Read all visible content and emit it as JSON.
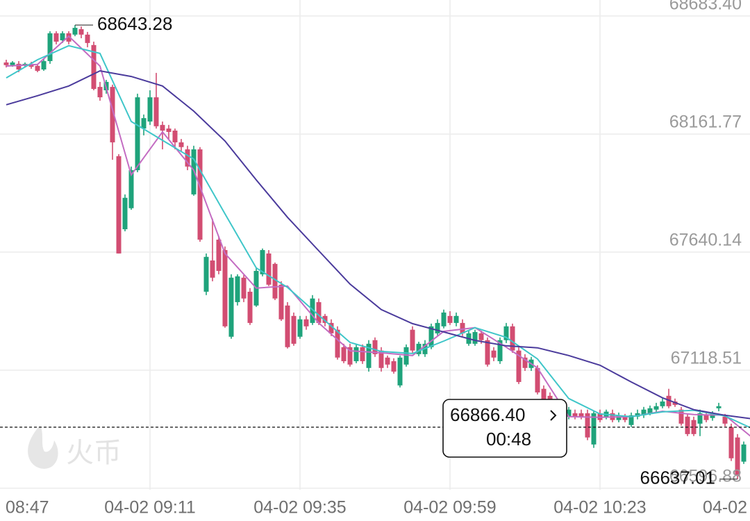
{
  "chart_data": {
    "type": "candlestick",
    "xlim": [
      527,
      647
    ],
    "xticks": [
      {
        "value": 527,
        "label": "08:47"
      },
      {
        "value": 551,
        "label": "04-02 09:11"
      },
      {
        "value": 575,
        "label": "04-02 09:35"
      },
      {
        "value": 599,
        "label": "04-02 09:59"
      },
      {
        "value": 623,
        "label": "04-02 10:23"
      },
      {
        "value": 647,
        "label": "04-02"
      }
    ],
    "ylim": [
      66590,
      68754
    ],
    "yticks": [
      {
        "value": 68683.4,
        "label": "68683.40"
      },
      68161.77,
      67640.14,
      67118.51,
      66596.88
    ],
    "grid": true,
    "up_color": "#1fa37b",
    "down_color": "#d24d72",
    "ohlc": [
      [
        528,
        68478,
        68490,
        68456,
        68466
      ],
      [
        529,
        68466,
        68484,
        68459,
        68478
      ],
      [
        530,
        68472,
        68484,
        68435,
        68447
      ],
      [
        531,
        68463,
        68478,
        68456,
        68472
      ],
      [
        532,
        68472,
        68481,
        68450,
        68459
      ],
      [
        533,
        68463,
        68472,
        68435,
        68441
      ],
      [
        534,
        68447,
        68493,
        68441,
        68484
      ],
      [
        535,
        68484,
        68616,
        68472,
        68607
      ],
      [
        536,
        68607,
        68616,
        68558,
        68570
      ],
      [
        537,
        68576,
        68616,
        68564,
        68607
      ],
      [
        538,
        68607,
        68616,
        68558,
        68570
      ],
      [
        539,
        68601,
        68643.28,
        68594,
        68631
      ],
      [
        540,
        68625,
        68637,
        68585,
        68601
      ],
      [
        541,
        68601,
        68613,
        68545,
        68564
      ],
      [
        542,
        68555,
        68570,
        68355,
        68361
      ],
      [
        543,
        68370,
        68392,
        68309,
        68324
      ],
      [
        544,
        68355,
        68401,
        68340,
        68392
      ],
      [
        545,
        68370,
        68380,
        68048,
        68125
      ],
      [
        546,
        68064,
        68073,
        67634,
        67634
      ],
      [
        547,
        67741,
        67895,
        67732,
        67880
      ],
      [
        548,
        67834,
        68018,
        67827,
        68002
      ],
      [
        549,
        68002,
        68340,
        67993,
        68324
      ],
      [
        550,
        68186,
        68248,
        68156,
        68232
      ],
      [
        551,
        68217,
        68355,
        68202,
        68324
      ],
      [
        552,
        68324,
        68432,
        68186,
        68196
      ],
      [
        553,
        68202,
        68217,
        68094,
        68177
      ],
      [
        554,
        68186,
        68202,
        68140,
        68171
      ],
      [
        555,
        68177,
        68186,
        68094,
        68125
      ],
      [
        556,
        68125,
        68140,
        68085,
        68104
      ],
      [
        557,
        68094,
        68110,
        68002,
        68018
      ],
      [
        558,
        67895,
        68110,
        67889,
        68094
      ],
      [
        559,
        68094,
        68104,
        67686,
        67695
      ],
      [
        560,
        67465,
        67634,
        67450,
        67619
      ],
      [
        561,
        67603,
        67788,
        67511,
        67527
      ],
      [
        562,
        67695,
        67711,
        67542,
        67557
      ],
      [
        563,
        67649,
        67665,
        67306,
        67312
      ],
      [
        564,
        67266,
        67542,
        67257,
        67527
      ],
      [
        565,
        67419,
        67542,
        67404,
        67533
      ],
      [
        566,
        67527,
        67539,
        67419,
        67435
      ],
      [
        567,
        67465,
        67481,
        67318,
        67327
      ],
      [
        568,
        67404,
        67573,
        67398,
        67557
      ],
      [
        569,
        67542,
        67656,
        67533,
        67649
      ],
      [
        570,
        67634,
        67649,
        67490,
        67496
      ],
      [
        571,
        67588,
        67594,
        67428,
        67435
      ],
      [
        572,
        67496,
        67511,
        67336,
        67343
      ],
      [
        573,
        67404,
        67419,
        67214,
        67220
      ],
      [
        574,
        67358,
        67373,
        67226,
        67235
      ],
      [
        575,
        67266,
        67358,
        67257,
        67343
      ],
      [
        576,
        67343,
        67358,
        67297,
        67312
      ],
      [
        577,
        67327,
        67450,
        67318,
        67435
      ],
      [
        578,
        67419,
        67435,
        67318,
        67327
      ],
      [
        579,
        67358,
        67367,
        67312,
        67327
      ],
      [
        580,
        67327,
        67343,
        67269,
        67281
      ],
      [
        581,
        67297,
        67312,
        67165,
        67174
      ],
      [
        582,
        67220,
        67235,
        67149,
        67158
      ],
      [
        583,
        67220,
        67235,
        67134,
        67143
      ],
      [
        584,
        67158,
        67235,
        67149,
        67220
      ],
      [
        585,
        67220,
        67232,
        67146,
        67158
      ],
      [
        586,
        67128,
        67251,
        67112,
        67235
      ],
      [
        587,
        67251,
        67263,
        67177,
        67189
      ],
      [
        588,
        67205,
        67220,
        67112,
        67128
      ],
      [
        589,
        67174,
        67183,
        67128,
        67143
      ],
      [
        590,
        67158,
        67171,
        67103,
        67112
      ],
      [
        591,
        67051,
        67183,
        67042,
        67174
      ],
      [
        592,
        67143,
        67232,
        67134,
        67220
      ],
      [
        593,
        67297,
        67312,
        67195,
        67205
      ],
      [
        594,
        67189,
        67244,
        67180,
        67235
      ],
      [
        595,
        67189,
        67251,
        67177,
        67235
      ],
      [
        596,
        67220,
        67324,
        67211,
        67312
      ],
      [
        597,
        67281,
        67343,
        67272,
        67327
      ],
      [
        598,
        67312,
        67386,
        67303,
        67373
      ],
      [
        599,
        67358,
        67379,
        67318,
        67327
      ],
      [
        600,
        67327,
        67373,
        67312,
        67358
      ],
      [
        601,
        67327,
        67343,
        67269,
        67281
      ],
      [
        602,
        67235,
        67293,
        67226,
        67281
      ],
      [
        603,
        67235,
        67297,
        67226,
        67287
      ],
      [
        604,
        67281,
        67293,
        67235,
        67251
      ],
      [
        605,
        67251,
        67263,
        67134,
        67143
      ],
      [
        606,
        67205,
        67220,
        67158,
        67174
      ],
      [
        607,
        67158,
        67263,
        67146,
        67251
      ],
      [
        608,
        67251,
        67327,
        67238,
        67312
      ],
      [
        609,
        67312,
        67324,
        67195,
        67205
      ],
      [
        610,
        67205,
        67220,
        67057,
        67066
      ],
      [
        611,
        67174,
        67189,
        67115,
        67128
      ],
      [
        612,
        67128,
        67177,
        67115,
        67165
      ],
      [
        613,
        67128,
        67140,
        67011,
        67020
      ],
      [
        614,
        67036,
        67051,
        66901,
        66913
      ],
      [
        615,
        67005,
        67020,
        66839,
        66852
      ],
      [
        616,
        66974,
        66990,
        66778,
        66790
      ],
      [
        617,
        66913,
        66925,
        66827,
        66836
      ],
      [
        618,
        66913,
        66956,
        66901,
        66944
      ],
      [
        619,
        66928,
        66944,
        66901,
        66913
      ],
      [
        620,
        66928,
        66944,
        66901,
        66913
      ],
      [
        621,
        66928,
        66944,
        66809,
        66821
      ],
      [
        622,
        66790,
        66937,
        66775,
        66928
      ],
      [
        623,
        66928,
        66944,
        66888,
        66898
      ],
      [
        624,
        66913,
        66944,
        66901,
        66935
      ],
      [
        625,
        66928,
        66944,
        66888,
        66898
      ],
      [
        626,
        66898,
        66931,
        66888,
        66919
      ],
      [
        627,
        66913,
        66925,
        66888,
        66898
      ],
      [
        628,
        66876,
        66931,
        66867,
        66919
      ],
      [
        629,
        66913,
        66944,
        66901,
        66928
      ],
      [
        630,
        66919,
        66956,
        66907,
        66944
      ],
      [
        631,
        66928,
        66962,
        66919,
        66950
      ],
      [
        632,
        66944,
        66974,
        66931,
        66959
      ],
      [
        633,
        66959,
        66993,
        66950,
        66980
      ],
      [
        634,
        67005,
        67036,
        66950,
        66959
      ],
      [
        635,
        66980,
        66993,
        66956,
        66965
      ],
      [
        636,
        66944,
        66956,
        66873,
        66882
      ],
      [
        637,
        66913,
        66925,
        66827,
        66836
      ],
      [
        638,
        66898,
        66913,
        66827,
        66836
      ],
      [
        639,
        66882,
        66944,
        66827,
        66928
      ],
      [
        640,
        66919,
        66931,
        66888,
        66898
      ],
      [
        641,
        66907,
        66937,
        66895,
        66928
      ],
      [
        642,
        66950,
        66974,
        66937,
        66959
      ],
      [
        643,
        66913,
        66925,
        66870,
        66882
      ],
      [
        644,
        66867,
        66882,
        66717,
        66729
      ],
      [
        645,
        66821,
        66836,
        66637.01,
        66652
      ],
      [
        646,
        66714,
        66803,
        66704,
        66790
      ]
    ],
    "x": [
      528,
      533,
      538,
      543,
      548,
      553,
      558,
      563,
      568,
      573,
      578,
      583,
      588,
      593,
      598,
      603,
      608,
      613,
      618,
      623,
      628,
      633,
      638,
      643,
      648
    ],
    "series": [
      {
        "color": "#c36cc2",
        "values": [
          68462,
          68469,
          68594,
          68462,
          67981,
          68171,
          68002,
          67634,
          67481,
          67490,
          67327,
          67204,
          67195,
          67183,
          67290,
          67306,
          67220,
          67128,
          66913,
          66910,
          66913,
          66937,
          66922,
          66919,
          66806
        ]
      },
      {
        "color": "#3fc6c9",
        "values": [
          68410,
          68490,
          68552,
          68518,
          68217,
          68134,
          68051,
          67809,
          67570,
          67484,
          67361,
          67241,
          67201,
          67192,
          67247,
          67306,
          67263,
          67168,
          66993,
          66925,
          66913,
          66934,
          66941,
          66916,
          66852
        ]
      },
      {
        "color": "#4b3b9c",
        "values": [
          68291,
          68331,
          68374,
          68441,
          68416,
          68374,
          68263,
          68131,
          67959,
          67794,
          67646,
          67499,
          67386,
          67324,
          67287,
          67250,
          67226,
          67217,
          67183,
          67140,
          67066,
          66996,
          66944,
          66919,
          66901
        ]
      }
    ],
    "last_price": {
      "value": 66866.4,
      "label": "66866.40"
    },
    "countdown": "00:48"
  },
  "watermark": "火币"
}
